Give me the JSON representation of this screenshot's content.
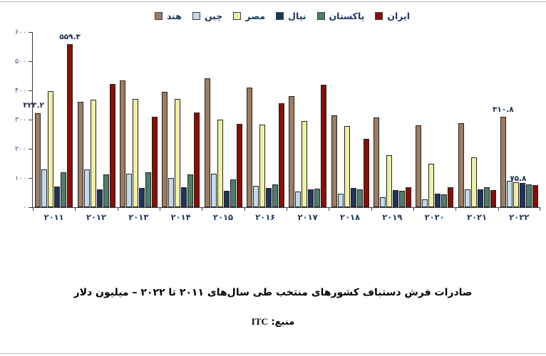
{
  "page": {
    "caption": "صادرات فرش دستباف کشورهای منتخب طی سال‌های ۲۰۱۱ تا ۲۰۲۲ – میلیون دلار",
    "source_label": "منبع:",
    "source_value": "ITC"
  },
  "chart_data": {
    "type": "bar",
    "title": "صادرات فرش دستباف کشورهای منتخب طی سال‌های ۲۰۱۱ تا ۲۰۲۲ – میلیون دلار",
    "source": "منبع: ITC",
    "unit_label": "میلیون دلار",
    "legend_position": "top",
    "grid": false,
    "categories": [
      "۲۰۱۱",
      "۲۰۱۲",
      "۲۰۱۳",
      "۲۰۱۴",
      "۲۰۱۵",
      "۲۰۱۶",
      "۲۰۱۷",
      "۲۰۱۸",
      "۲۰۱۹",
      "۲۰۲۰",
      "۲۰۲۱",
      "۲۰۲۲"
    ],
    "series": [
      {
        "name": "هند",
        "color": "#9C7C62",
        "values": [
          323.2,
          360,
          435,
          395,
          442,
          410,
          380,
          315,
          308,
          280,
          288,
          310.8
        ]
      },
      {
        "name": "چین",
        "color": "#C3DAEB",
        "values": [
          130,
          130,
          115,
          100,
          115,
          74,
          53,
          46,
          35,
          28,
          61,
          90
        ]
      },
      {
        "name": "مصر",
        "color": "#EEF0A2",
        "values": [
          398,
          368,
          371,
          371,
          300,
          283,
          295,
          278,
          178,
          150,
          170,
          86
        ]
      },
      {
        "name": "نپال",
        "color": "#20335B",
        "values": [
          70,
          60,
          65,
          68,
          57,
          66,
          61,
          65,
          59,
          47,
          62,
          82
        ]
      },
      {
        "name": "پاکستان",
        "color": "#4F7D6C",
        "values": [
          120,
          112,
          120,
          112,
          94,
          78,
          63,
          61,
          55,
          45,
          68,
          78
        ]
      },
      {
        "name": "ایران",
        "color": "#8B0E05",
        "values": [
          559.3,
          422,
          310,
          325,
          285,
          355,
          420,
          233,
          68,
          68,
          59,
          75.8
        ]
      }
    ],
    "ylim": [
      0,
      600
    ],
    "ytick_values": [
      0,
      100,
      200,
      300,
      400,
      500,
      600
    ],
    "ytick_labels": [
      "۰",
      "۱۰۰",
      "۲۰۰",
      "۳۰۰",
      "۴۰۰",
      "۵۰۰",
      "۶۰۰"
    ],
    "point_labels": [
      {
        "series_index": 0,
        "category_index": 0,
        "text": "۳۲۳.۲",
        "value": 323.2
      },
      {
        "series_index": 5,
        "category_index": 0,
        "text": "۵۵۹.۳",
        "value": 559.3
      },
      {
        "series_index": 0,
        "category_index": 11,
        "text": "۳۱۰.۸",
        "value": 310.8
      },
      {
        "series_index": 5,
        "category_index": 11,
        "text": "۷۵.۸",
        "value": 75.8
      }
    ]
  },
  "colors": {
    "legend_text": "#1F3864",
    "axis_line": "#3C3C3C",
    "tick_text": "#44618A",
    "caption_text": "#000000"
  }
}
